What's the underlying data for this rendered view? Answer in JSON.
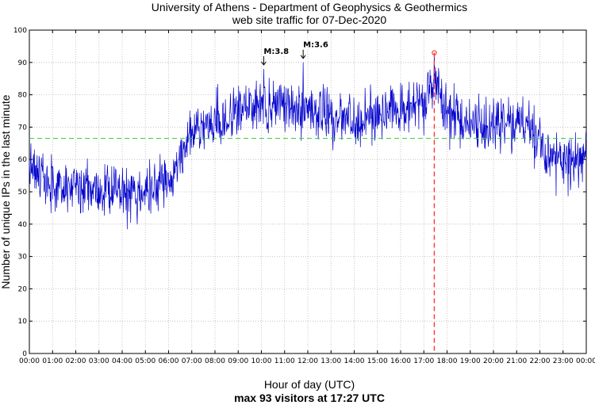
{
  "chart_data": {
    "type": "line",
    "title": "University of Athens - Department of Geophysics & Geothermics",
    "subtitle": "web site traffic for 07-Dec-2020",
    "xlabel": "Hour of day (UTC)",
    "ylabel": "Number of unique IPs in the last minute",
    "footer": "max 93 visitors at 17:27 UTC",
    "xlim": [
      0,
      24
    ],
    "ylim": [
      0,
      100
    ],
    "x_ticks": [
      "00:00",
      "01:00",
      "02:00",
      "03:00",
      "04:00",
      "05:00",
      "06:00",
      "07:00",
      "08:00",
      "09:00",
      "10:00",
      "11:00",
      "12:00",
      "13:00",
      "14:00",
      "15:00",
      "16:00",
      "17:00",
      "18:00",
      "19:00",
      "20:00",
      "21:00",
      "22:00",
      "23:00",
      "00:00"
    ],
    "y_ticks": [
      0,
      10,
      20,
      30,
      40,
      50,
      60,
      70,
      80,
      90,
      100
    ],
    "grid": true,
    "mean_line": 66.5,
    "max": {
      "time": "17:27",
      "hour": 17.45,
      "value": 93
    },
    "annotations": [
      {
        "label": "M:3.8",
        "hour": 10.1,
        "value": 89
      },
      {
        "label": "M:3.6",
        "hour": 11.8,
        "value": 91
      }
    ],
    "series_profile": {
      "hours": [
        0,
        0.5,
        1,
        2,
        3,
        4,
        5,
        5.5,
        6,
        6.5,
        7,
        7.5,
        8,
        9,
        10,
        11,
        12,
        13,
        14,
        15,
        16,
        17,
        17.45,
        18,
        19,
        20,
        21,
        21.5,
        22,
        22.5,
        23,
        23.5,
        24
      ],
      "values": [
        57,
        54,
        52,
        51,
        50,
        50,
        50,
        51,
        54,
        60,
        68,
        71,
        72,
        74,
        77,
        77,
        76,
        74,
        72,
        74,
        76,
        78,
        85,
        75,
        71,
        70,
        71,
        70,
        65,
        60,
        61,
        60,
        60
      ]
    },
    "series_color": "#0000cc",
    "mean_color": "#33cc33",
    "max_color": "#ff3333"
  }
}
